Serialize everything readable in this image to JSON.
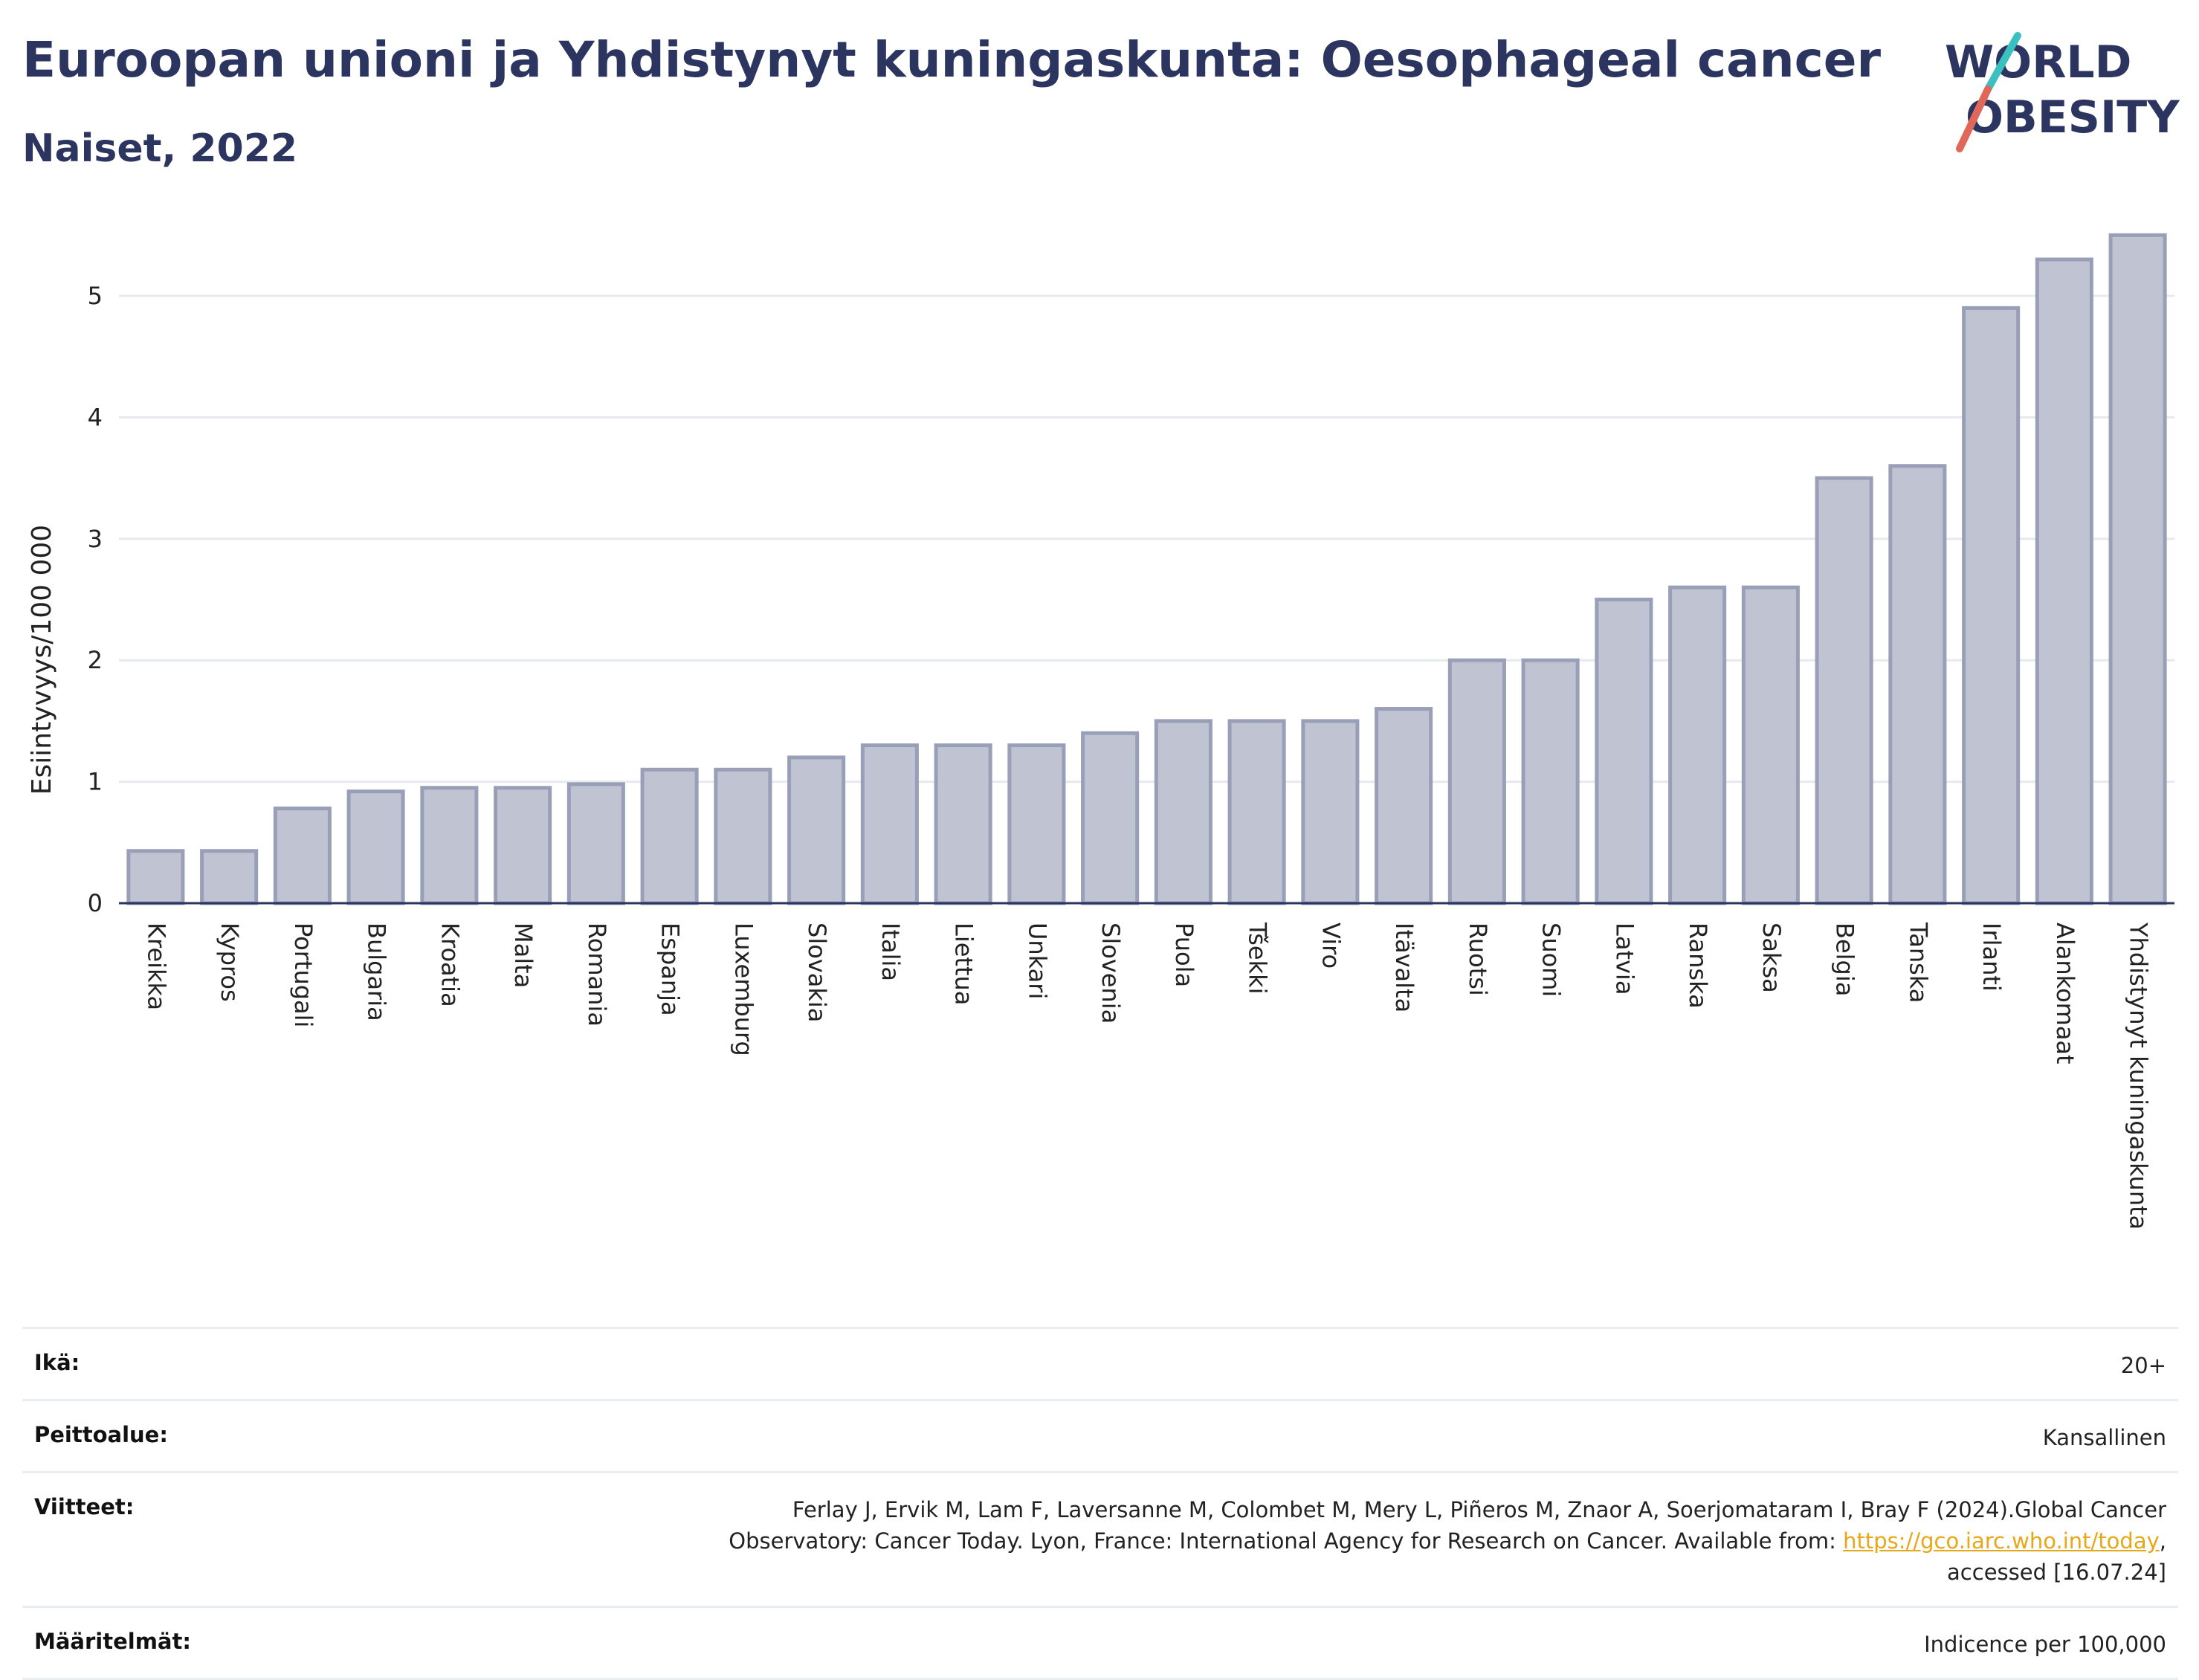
{
  "header": {
    "title": "Euroopan unioni ja Yhdistynyt kuningaskunta: Oesophageal cancer",
    "subtitle": "Naiset, 2022"
  },
  "logo": {
    "line1": "WORLD",
    "line2": "OBESITY"
  },
  "colors": {
    "bar_fill": "#bfc3d2",
    "bar_stroke": "#9a9fb8",
    "title": "#2b3560",
    "link": "#e6a817",
    "logo_slash_teal": "#3bbfbf",
    "logo_slash_red": "#e0685a"
  },
  "chart_data": {
    "type": "bar",
    "ylabel": "Esiintyvyys/100 000",
    "ylim": [
      0,
      5.6
    ],
    "yticks": [
      0,
      1,
      2,
      3,
      4,
      5
    ],
    "grid": true,
    "categories": [
      "Kreikka",
      "Kypros",
      "Portugali",
      "Bulgaria",
      "Kroatia",
      "Malta",
      "Romania",
      "Espanja",
      "Luxemburg",
      "Slovakia",
      "Italia",
      "Liettua",
      "Unkari",
      "Slovenia",
      "Puola",
      "Tšekki",
      "Viro",
      "Itävalta",
      "Ruotsi",
      "Suomi",
      "Latvia",
      "Ranska",
      "Saksa",
      "Belgia",
      "Tanska",
      "Irlanti",
      "Alankomaat",
      "Yhdistynyt kuningaskunta"
    ],
    "values": [
      0.43,
      0.43,
      0.78,
      0.92,
      0.95,
      0.95,
      0.98,
      1.1,
      1.1,
      1.2,
      1.3,
      1.3,
      1.3,
      1.4,
      1.5,
      1.5,
      1.5,
      1.6,
      2.0,
      2.0,
      2.5,
      2.6,
      2.6,
      3.5,
      3.6,
      4.9,
      5.3,
      5.5
    ]
  },
  "info": {
    "age_label": "Ikä:",
    "age_value": "20+",
    "coverage_label": "Peittoalue:",
    "coverage_value": "Kansallinen",
    "refs_label": "Viitteet:",
    "refs_text_1": "Ferlay J, Ervik M, Lam F, Laversanne M, Colombet M, Mery L, Piñeros M, Znaor A, Soerjomataram I, Bray F (2024).Global Cancer",
    "refs_text_2": "Observatory: Cancer Today. Lyon, France: International Agency for Research on Cancer. Available from: ",
    "refs_link": "https://gco.iarc.who.int/today",
    "refs_text_3": ",",
    "refs_text_4": "accessed [16.07.24]",
    "defs_label": "Määritelmät:",
    "defs_value": "Indicence per 100,000"
  }
}
